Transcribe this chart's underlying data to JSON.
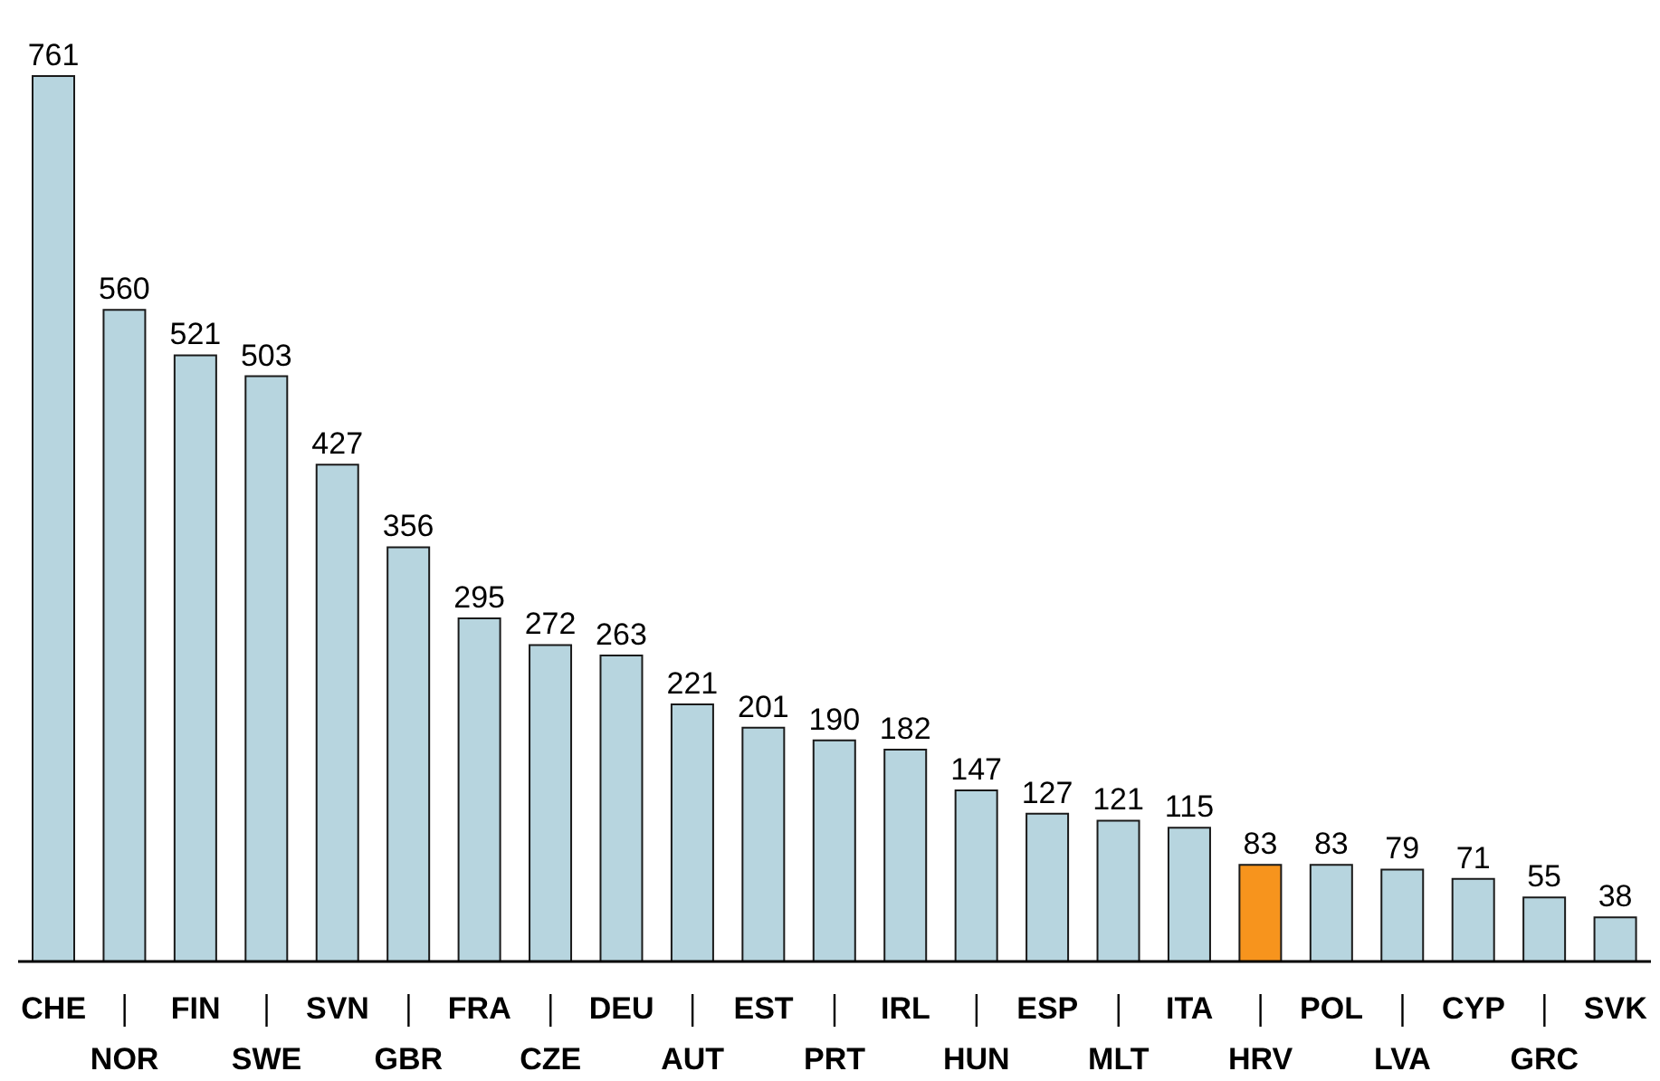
{
  "chart_data": {
    "type": "bar",
    "categories": [
      "CHE",
      "NOR",
      "FIN",
      "SWE",
      "SVN",
      "GBR",
      "FRA",
      "CZE",
      "DEU",
      "AUT",
      "EST",
      "PRT",
      "IRL",
      "HUN",
      "ESP",
      "MLT",
      "ITA",
      "HRV",
      "POL",
      "LVA",
      "CYP",
      "GRC",
      "SVK"
    ],
    "values": [
      761,
      560,
      521,
      503,
      427,
      356,
      295,
      272,
      263,
      221,
      201,
      190,
      182,
      147,
      127,
      121,
      115,
      83,
      83,
      79,
      71,
      55,
      38
    ],
    "colors": [
      "#b7d5df",
      "#b7d5df",
      "#b7d5df",
      "#b7d5df",
      "#b7d5df",
      "#b7d5df",
      "#b7d5df",
      "#b7d5df",
      "#b7d5df",
      "#b7d5df",
      "#b7d5df",
      "#b7d5df",
      "#b7d5df",
      "#b7d5df",
      "#b7d5df",
      "#b7d5df",
      "#b7d5df",
      "#f7941d",
      "#b7d5df",
      "#b7d5df",
      "#b7d5df",
      "#b7d5df",
      "#b7d5df"
    ],
    "data_labels": true
  }
}
